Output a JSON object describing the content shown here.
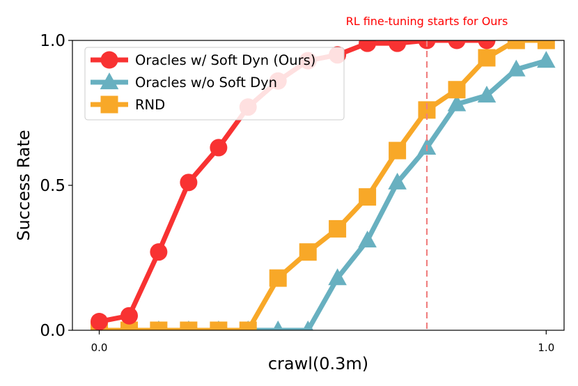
{
  "chart_data": {
    "type": "line",
    "title": "",
    "xlabel": "crawl(0.3m)",
    "ylabel": "Success Rate",
    "xlim": [
      -0.06,
      1.04
    ],
    "ylim": [
      0.0,
      1.0
    ],
    "xticks": [
      0.0,
      1.0
    ],
    "xtick_labels": [
      "0.0",
      "1.0"
    ],
    "yticks": [
      0.0,
      0.5,
      1.0
    ],
    "ytick_labels": [
      "0.0",
      "0.5",
      "1.0"
    ],
    "grid": false,
    "legend_position": "top-left",
    "annotation": {
      "text": "RL fine-tuning starts for Ours",
      "x": 0.733,
      "color": "#ff0000",
      "line_color": "#f08080",
      "line_style": "dashed"
    },
    "series": [
      {
        "name": "Oracles w/ Soft Dyn (Ours)",
        "color": "#f83232",
        "marker": "circle",
        "x": [
          0.0,
          0.067,
          0.133,
          0.2,
          0.267,
          0.333,
          0.4,
          0.467,
          0.533,
          0.6,
          0.667,
          0.733,
          0.8,
          0.867
        ],
        "y": [
          0.03,
          0.05,
          0.27,
          0.51,
          0.63,
          0.77,
          0.86,
          0.93,
          0.95,
          0.99,
          0.99,
          1.0,
          1.0,
          1.0
        ]
      },
      {
        "name": "Oracles w/o Soft Dyn",
        "color": "#68b0c0",
        "marker": "triangle",
        "x": [
          0.0,
          0.067,
          0.133,
          0.2,
          0.267,
          0.333,
          0.4,
          0.467,
          0.533,
          0.6,
          0.667,
          0.733,
          0.8,
          0.867,
          0.933,
          1.0
        ],
        "y": [
          0.0,
          0.0,
          0.0,
          0.0,
          0.0,
          0.0,
          0.0,
          0.0,
          0.18,
          0.31,
          0.51,
          0.63,
          0.78,
          0.81,
          0.9,
          0.93
        ]
      },
      {
        "name": "RND",
        "color": "#f8a828",
        "marker": "square",
        "x": [
          0.0,
          0.067,
          0.133,
          0.2,
          0.267,
          0.333,
          0.4,
          0.467,
          0.533,
          0.6,
          0.667,
          0.733,
          0.8,
          0.867,
          0.933,
          1.0
        ],
        "y": [
          0.0,
          0.0,
          0.0,
          0.0,
          0.0,
          0.0,
          0.18,
          0.27,
          0.35,
          0.46,
          0.62,
          0.76,
          0.83,
          0.94,
          1.0,
          1.0
        ]
      }
    ]
  }
}
